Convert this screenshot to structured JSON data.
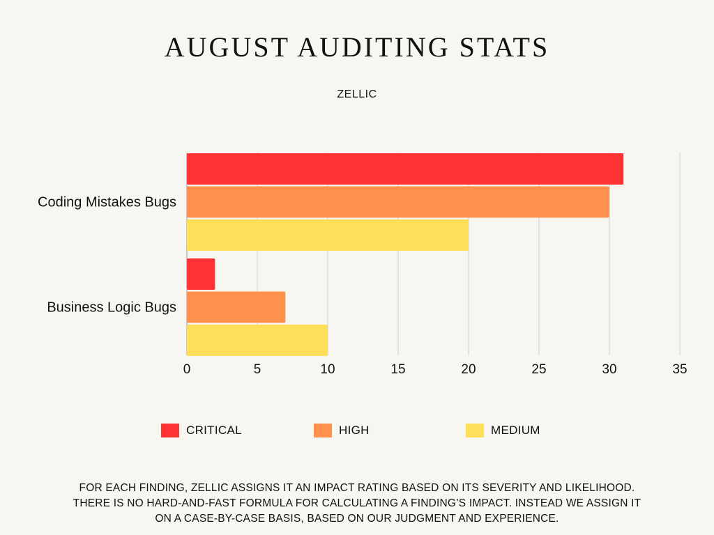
{
  "title": "AUGUST AUDITING STATS",
  "subtitle": "ZELLIC",
  "chart_data": {
    "type": "bar",
    "orientation": "horizontal",
    "title": "AUGUST AUDITING STATS",
    "subtitle": "ZELLIC",
    "categories": [
      "Coding Mistakes Bugs",
      "Business Logic Bugs"
    ],
    "series": [
      {
        "name": "CRITICAL",
        "color": "#ff3333",
        "values": [
          31,
          2
        ]
      },
      {
        "name": "HIGH",
        "color": "#ff914d",
        "values": [
          30,
          7
        ]
      },
      {
        "name": "MEDIUM",
        "color": "#ffde59",
        "values": [
          20,
          10
        ]
      }
    ],
    "xlim": [
      0,
      35
    ],
    "xticks": [
      "0",
      "5",
      "10",
      "15",
      "20",
      "25",
      "30",
      "35"
    ],
    "grid": true,
    "legend_position": "bottom"
  },
  "legend": [
    {
      "label": "CRITICAL",
      "color": "#ff3333"
    },
    {
      "label": "HIGH",
      "color": "#ff914d"
    },
    {
      "label": "MEDIUM",
      "color": "#ffde59"
    }
  ],
  "footnote": "FOR EACH FINDING, ZELLIC ASSIGNS IT AN IMPACT RATING BASED ON ITS SEVERITY AND LIKELIHOOD. THERE IS NO HARD-AND-FAST FORMULA FOR CALCULATING A FINDING’S IMPACT. INSTEAD WE ASSIGN IT ON A CASE-BY-CASE BASIS, BASED ON OUR JUDGMENT AND EXPERIENCE."
}
